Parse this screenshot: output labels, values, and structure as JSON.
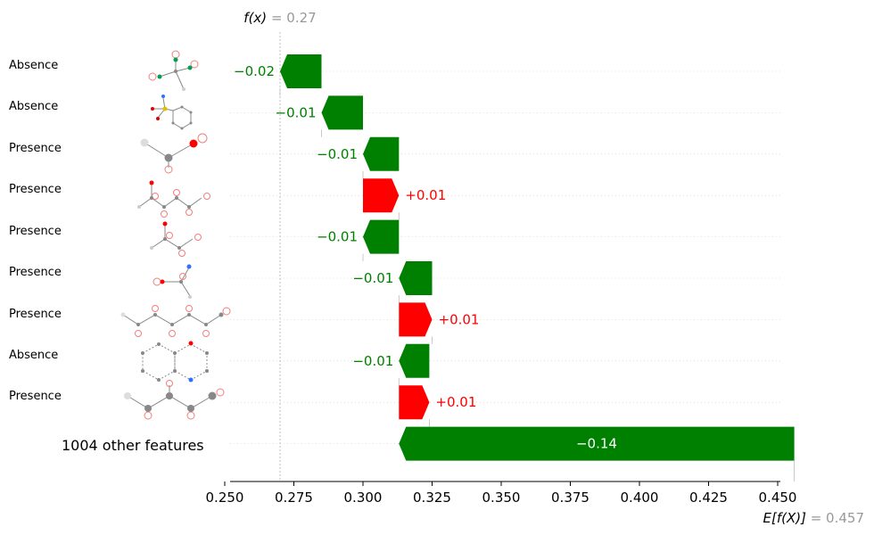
{
  "chart_data": {
    "type": "waterfall",
    "fx_label": "f(x)",
    "fx_value_text": "= 0.27",
    "fx": 0.27,
    "base_label": "E[f(X)]",
    "base_value_text": "= 0.457",
    "base": 0.457,
    "xlim": [
      0.24,
      0.456
    ],
    "xticks": [
      0.25,
      0.275,
      0.3,
      0.325,
      0.35,
      0.375,
      0.4,
      0.425,
      0.45
    ],
    "xtick_labels": [
      "0.250",
      "0.275",
      "0.300",
      "0.325",
      "0.350",
      "0.375",
      "0.400",
      "0.425",
      "0.450"
    ],
    "rows": [
      {
        "feature": "Absence",
        "start": 0.285,
        "end": 0.27,
        "label": "−0.02"
      },
      {
        "feature": "Absence",
        "start": 0.3,
        "end": 0.285,
        "label": "−0.01"
      },
      {
        "feature": "Presence",
        "start": 0.313,
        "end": 0.3,
        "label": "−0.01"
      },
      {
        "feature": "Presence",
        "start": 0.3,
        "end": 0.313,
        "label": "+0.01"
      },
      {
        "feature": "Presence",
        "start": 0.313,
        "end": 0.3,
        "label": "−0.01"
      },
      {
        "feature": "Presence",
        "start": 0.325,
        "end": 0.313,
        "label": "−0.01"
      },
      {
        "feature": "Presence",
        "start": 0.313,
        "end": 0.325,
        "label": "+0.01"
      },
      {
        "feature": "Absence",
        "start": 0.324,
        "end": 0.313,
        "label": "−0.01"
      },
      {
        "feature": "Presence",
        "start": 0.313,
        "end": 0.324,
        "label": "+0.01"
      },
      {
        "feature": "1004 other features",
        "start": 0.456,
        "end": 0.313,
        "label": "−0.14"
      }
    ],
    "colors": {
      "positive": "#ff0000",
      "negative": "#008000",
      "muted": "#999999"
    }
  }
}
